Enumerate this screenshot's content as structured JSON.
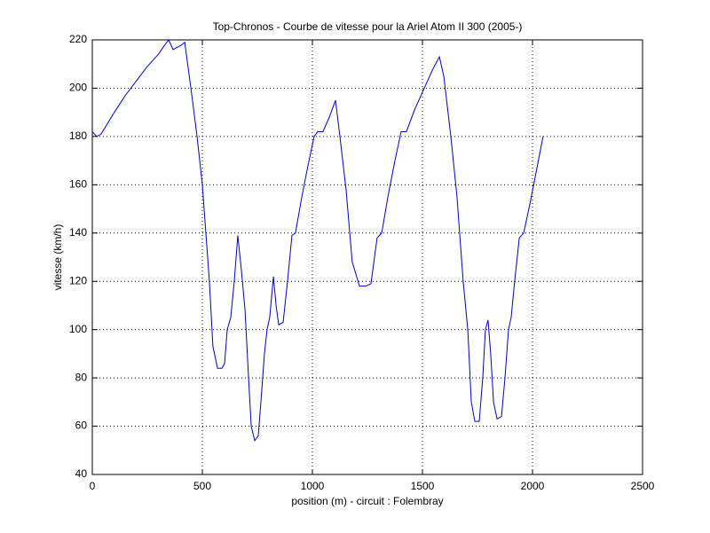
{
  "chart_data": {
    "type": "line",
    "title": "Top-Chronos - Courbe de vitesse pour la Ariel Atom II 300 (2005-)",
    "x_label": "position (m) - circuit : Folembray",
    "y_label": "vitesse (km/h)",
    "xlim": [
      0,
      2500
    ],
    "xticks": [
      0,
      500,
      1000,
      1500,
      2000,
      2500
    ],
    "ylim": [
      40,
      220
    ],
    "yticks": [
      40,
      60,
      80,
      100,
      120,
      140,
      160,
      180,
      200,
      220
    ],
    "grid": true,
    "series": [
      {
        "color": "#0000c8",
        "x": [
          0,
          20,
          40,
          60,
          100,
          150,
          200,
          250,
          300,
          330,
          347,
          367,
          407,
          420,
          448,
          476,
          500,
          516,
          532,
          548,
          569,
          589,
          601,
          613,
          629,
          645,
          661,
          677,
          694,
          710,
          722,
          738,
          754,
          766,
          782,
          794,
          806,
          823,
          835,
          847,
          867,
          887,
          907,
          923,
          952,
          980,
          1008,
          1024,
          1048,
          1077,
          1105,
          1125,
          1153,
          1181,
          1214,
          1242,
          1266,
          1294,
          1315,
          1343,
          1375,
          1403,
          1427,
          1464,
          1508,
          1548,
          1577,
          1597,
          1629,
          1657,
          1685,
          1706,
          1722,
          1738,
          1758,
          1774,
          1786,
          1798,
          1810,
          1823,
          1839,
          1859,
          1875,
          1891,
          1903,
          1919,
          1940,
          1960,
          1988,
          2016,
          2048
        ],
        "values": [
          182,
          180,
          181,
          184,
          190,
          197,
          203,
          209,
          214,
          218,
          220,
          216,
          218,
          219,
          200,
          180,
          160,
          140,
          120,
          93,
          84,
          84,
          86,
          100,
          105,
          120,
          139,
          125,
          108,
          80,
          60,
          54,
          56,
          70,
          90,
          100,
          105,
          122,
          110,
          102,
          103,
          120,
          139,
          140,
          155,
          168,
          180,
          182,
          182,
          188,
          195,
          180,
          158,
          128,
          118,
          118,
          119,
          138,
          140,
          155,
          170,
          182,
          182,
          191,
          200,
          208,
          213,
          205,
          180,
          155,
          120,
          100,
          70,
          62,
          62,
          80,
          100,
          104,
          90,
          70,
          63,
          64,
          80,
          100,
          105,
          120,
          138,
          140,
          152,
          165,
          180
        ]
      }
    ]
  }
}
